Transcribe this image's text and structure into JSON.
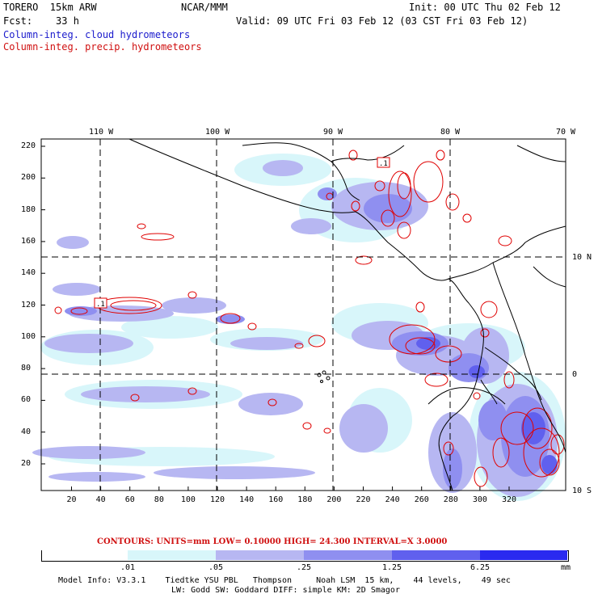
{
  "header": {
    "model_name": "TORERO  15km ARW",
    "org": "NCAR/MMM",
    "init": "Init: 00 UTC Thu 02 Feb 12",
    "fcst": "Fcst:    33 h",
    "valid": "Valid: 09 UTC Fri 03 Feb 12 (03 CST Fri 03 Feb 12)",
    "field_cloud": "Column-integ. cloud hydrometeors",
    "field_precip": "Column-integ. precip. hydrometeors"
  },
  "colors": {
    "cloud_text": "#1a1acc",
    "precip_text": "#d01010",
    "contour": "#e00000",
    "shade_1": "#d8f6fa",
    "shade_2": "#b7b7f2",
    "shade_3": "#8f8ff0",
    "shade_4": "#6060ee",
    "shade_5": "#2a2af0"
  },
  "map": {
    "lon_labels": [
      "110 W",
      "100 W",
      "90 W",
      "80 W",
      "70 W"
    ],
    "lat_labels": [
      "10 N",
      "0",
      "10 S"
    ],
    "y_ticks": [
      "220",
      "200",
      "180",
      "160",
      "140",
      "120",
      "100",
      "80",
      "60",
      "40",
      "20"
    ],
    "x_ticks": [
      "20",
      "40",
      "60",
      "80",
      "100",
      "120",
      "140",
      "160",
      "180",
      "200",
      "220",
      "240",
      "260",
      "280",
      "300",
      "320"
    ],
    "contour_labels": [
      ".1",
      ".1"
    ]
  },
  "legend": {
    "contours_text": "CONTOURS:  UNITS=mm  LOW= 0.10000      HIGH=  24.300      INTERVAL=X  3.0000",
    "colorbar_labels": [
      ".01",
      ".05",
      ".25",
      "1.25",
      "6.25"
    ],
    "unit": "mm"
  },
  "footer": {
    "line1": "Model Info: V3.3.1    Tiedtke YSU PBL   Thompson     Noah LSM  15 km,    44 levels,    49 sec",
    "line2": "LW: Godd SW: Goddard DIFF: simple KM: 2D Smagor"
  }
}
